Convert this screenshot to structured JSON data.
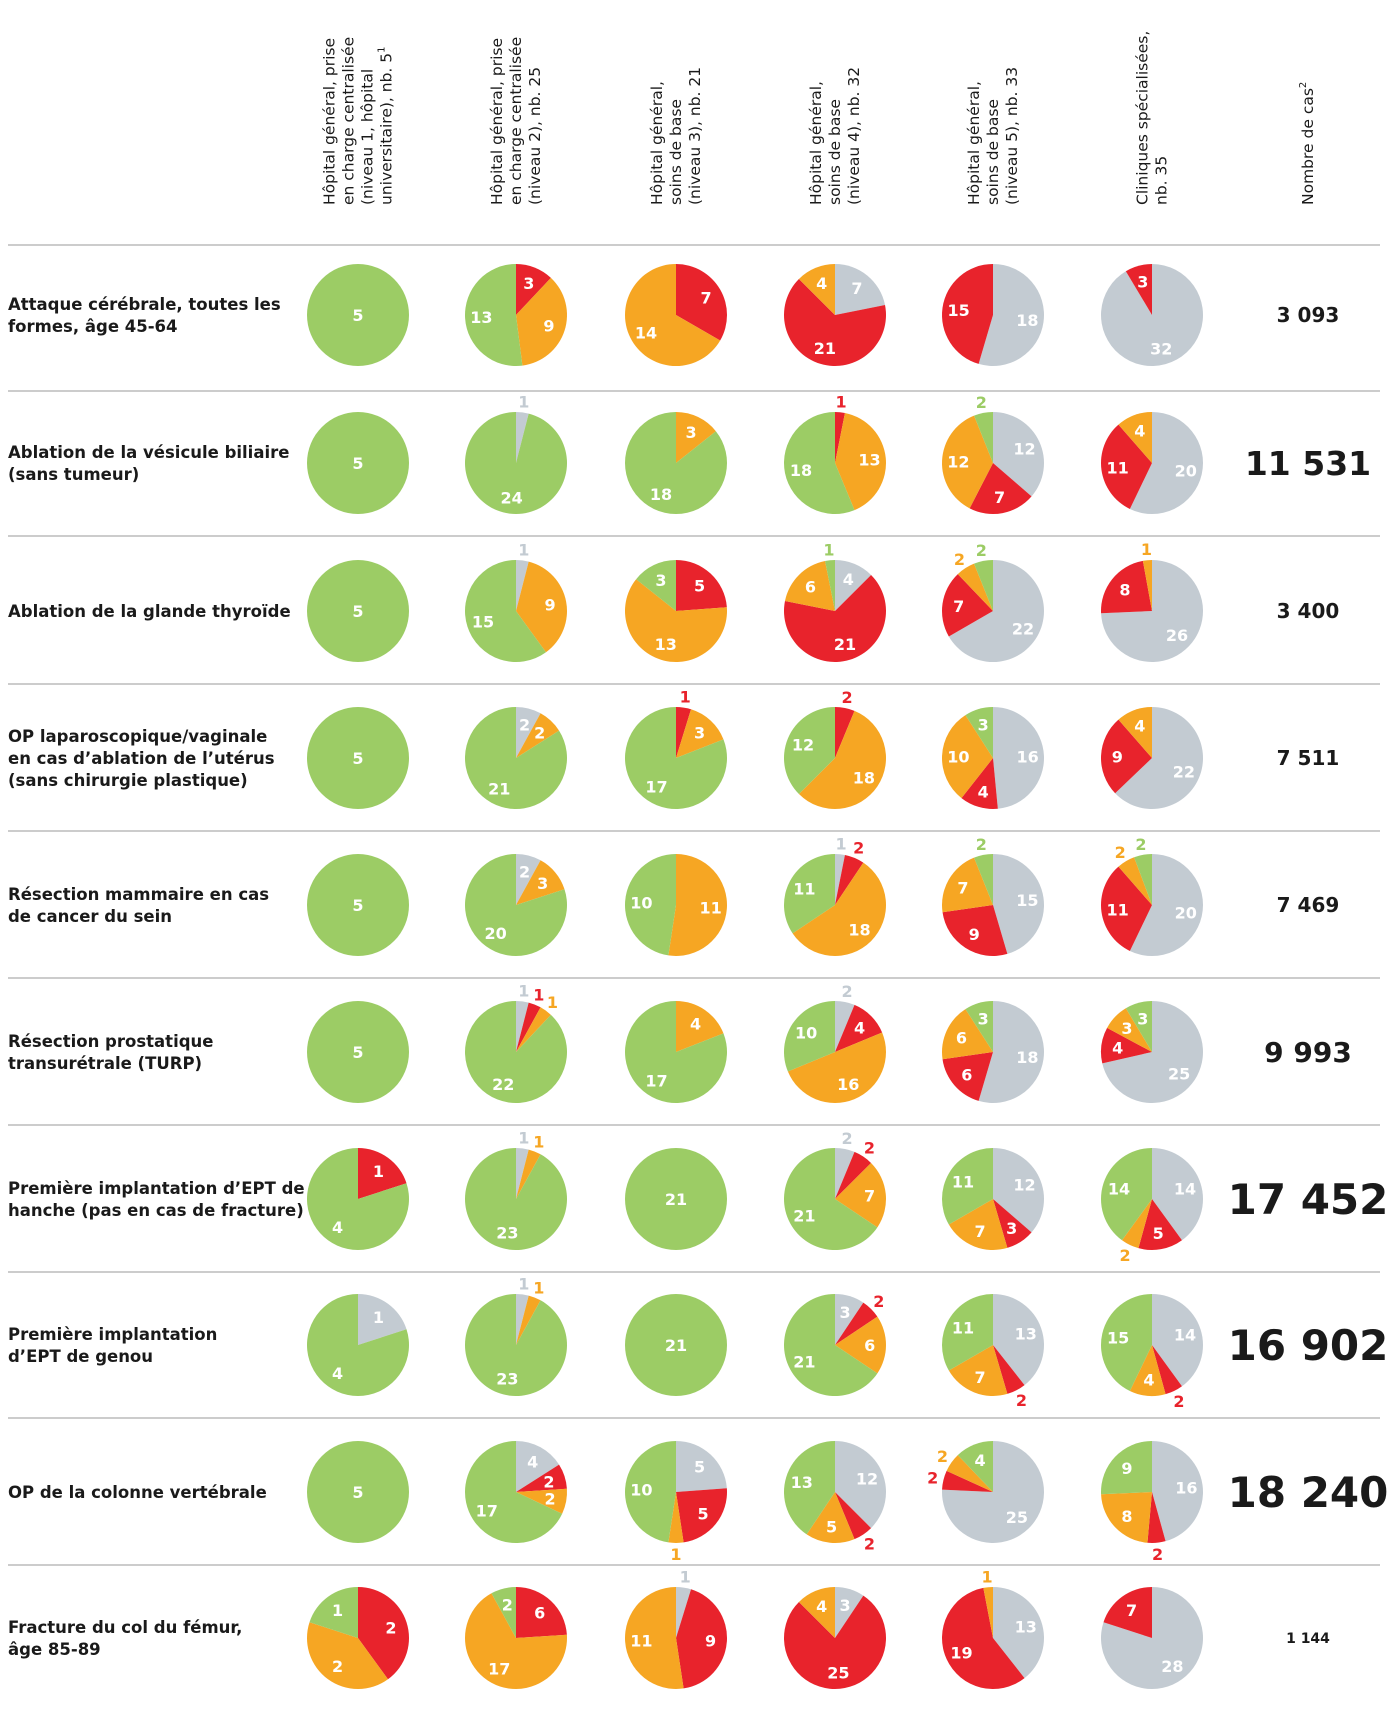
{
  "chart_data": {
    "type": "pie-grid",
    "colors": {
      "green": "#9ccc65",
      "orange": "#f6a623",
      "red": "#e8232c",
      "grey": "#c3cbd2"
    },
    "columns": [
      {
        "label_lines": [
          "Hôpital général, prise",
          "en charge centralisée",
          "(niveau 1, hôpital",
          "universitaire), nb. 5"
        ],
        "sup": "1"
      },
      {
        "label_lines": [
          "Hôpital général, prise",
          "en charge centralisée",
          "(niveau 2), nb. 25"
        ],
        "sup": ""
      },
      {
        "label_lines": [
          "Hôpital général,",
          "soins de base",
          "(niveau 3), nb. 21"
        ],
        "sup": ""
      },
      {
        "label_lines": [
          "Hôpital général,",
          "soins de base",
          "(niveau 4), nb. 32"
        ],
        "sup": ""
      },
      {
        "label_lines": [
          "Hôpital général,",
          "soins de base",
          "(niveau 5), nb. 33"
        ],
        "sup": ""
      },
      {
        "label_lines": [
          "Cliniques spécialisées,",
          "nb. 35"
        ],
        "sup": ""
      }
    ],
    "cases_header": {
      "text": "Nombre de cas",
      "sup": "2"
    },
    "rows": [
      {
        "label_lines": [
          "Attaque cérébrale, toutes les",
          "formes, âge 45-64"
        ],
        "cases": "3 093",
        "cases_size": "medium",
        "pies": [
          {
            "green": 5
          },
          {
            "green": 13,
            "orange": 9,
            "red": 3
          },
          {
            "orange": 14,
            "red": 7
          },
          {
            "orange": 4,
            "red": 21,
            "grey": 7
          },
          {
            "red": 15,
            "grey": 18
          },
          {
            "red": 3,
            "grey": 32
          }
        ]
      },
      {
        "label_lines": [
          "Ablation de la vésicule biliaire",
          "(sans tumeur)"
        ],
        "cases": "11 531",
        "cases_size": "large",
        "pies": [
          {
            "green": 5
          },
          {
            "green": 24,
            "grey": 1
          },
          {
            "green": 18,
            "orange": 3
          },
          {
            "green": 18,
            "orange": 13,
            "red": 1
          },
          {
            "green": 2,
            "orange": 12,
            "red": 7,
            "grey": 12
          },
          {
            "orange": 4,
            "red": 11,
            "grey": 20
          }
        ]
      },
      {
        "label_lines": [
          "Ablation de la glande thyroïde"
        ],
        "cases": "3 400",
        "cases_size": "medium",
        "pies": [
          {
            "green": 5
          },
          {
            "green": 15,
            "orange": 9,
            "grey": 1
          },
          {
            "green": 3,
            "orange": 13,
            "red": 5
          },
          {
            "green": 1,
            "orange": 6,
            "red": 21,
            "grey": 4
          },
          {
            "green": 2,
            "orange": 2,
            "red": 7,
            "grey": 22
          },
          {
            "orange": 1,
            "red": 8,
            "grey": 26
          }
        ]
      },
      {
        "label_lines": [
          "OP laparoscopique/vaginale",
          "en cas d’ablation de l’utérus",
          "(sans chirurgie plastique)"
        ],
        "cases": "7 511",
        "cases_size": "medium",
        "pies": [
          {
            "green": 5
          },
          {
            "green": 21,
            "orange": 2,
            "grey": 2
          },
          {
            "green": 17,
            "orange": 3,
            "red": 1
          },
          {
            "green": 12,
            "orange": 18,
            "red": 2
          },
          {
            "green": 3,
            "orange": 10,
            "red": 4,
            "grey": 16
          },
          {
            "orange": 4,
            "red": 9,
            "grey": 22
          }
        ]
      },
      {
        "label_lines": [
          "Résection mammaire en cas",
          "de cancer du sein"
        ],
        "cases": "7 469",
        "cases_size": "medium",
        "pies": [
          {
            "green": 5
          },
          {
            "green": 20,
            "orange": 3,
            "grey": 2
          },
          {
            "green": 10,
            "orange": 11
          },
          {
            "green": 11,
            "orange": 18,
            "red": 2,
            "grey": 1
          },
          {
            "green": 2,
            "orange": 7,
            "red": 9,
            "grey": 15
          },
          {
            "green": 2,
            "orange": 2,
            "red": 11,
            "grey": 20
          }
        ]
      },
      {
        "label_lines": [
          "Résection prostatique",
          "transurétrale (TURP)"
        ],
        "cases": "9 993",
        "cases_size": "medium-large",
        "pies": [
          {
            "green": 5
          },
          {
            "green": 22,
            "orange": 1,
            "red": 1,
            "grey": 1
          },
          {
            "green": 17,
            "orange": 4
          },
          {
            "green": 10,
            "orange": 16,
            "red": 4,
            "grey": 2
          },
          {
            "green": 3,
            "orange": 6,
            "red": 6,
            "grey": 18
          },
          {
            "green": 3,
            "orange": 3,
            "red": 4,
            "grey": 25
          }
        ]
      },
      {
        "label_lines": [
          "Première implantation d’EPT de",
          "hanche (pas en cas de fracture)"
        ],
        "cases": "17 452",
        "cases_size": "xlarge",
        "pies": [
          {
            "green": 4,
            "red": 1
          },
          {
            "green": 23,
            "orange": 1,
            "grey": 1
          },
          {
            "green": 21
          },
          {
            "green": 21,
            "orange": 7,
            "red": 2,
            "grey": 2
          },
          {
            "green": 11,
            "orange": 7,
            "red": 3,
            "grey": 12
          },
          {
            "green": 14,
            "orange": 2,
            "red": 5,
            "grey": 14
          }
        ]
      },
      {
        "label_lines": [
          "Première implantation",
          "d’EPT de genou"
        ],
        "cases": "16 902",
        "cases_size": "xlarge",
        "pies": [
          {
            "green": 4,
            "grey": 1
          },
          {
            "green": 23,
            "orange": 1,
            "grey": 1
          },
          {
            "green": 21
          },
          {
            "green": 21,
            "orange": 6,
            "red": 2,
            "grey": 3
          },
          {
            "green": 11,
            "orange": 7,
            "red": 2,
            "grey": 13
          },
          {
            "green": 15,
            "orange": 4,
            "red": 2,
            "grey": 14
          }
        ]
      },
      {
        "label_lines": [
          "OP de la colonne vertébrale"
        ],
        "cases": "18 240",
        "cases_size": "xlarge",
        "pies": [
          {
            "green": 5
          },
          {
            "green": 17,
            "orange": 2,
            "red": 2,
            "grey": 4
          },
          {
            "green": 10,
            "orange": 1,
            "red": 5,
            "grey": 5
          },
          {
            "green": 13,
            "orange": 5,
            "red": 2,
            "grey": 12
          },
          {
            "green": 4,
            "orange": 2,
            "red": 2,
            "grey": 25
          },
          {
            "green": 9,
            "orange": 8,
            "red": 2,
            "grey": 16
          }
        ]
      },
      {
        "label_lines": [
          "Fracture du col du fémur,",
          "âge 85-89"
        ],
        "cases": "1 144",
        "cases_size": "small",
        "pies": [
          {
            "green": 1,
            "orange": 2,
            "red": 2
          },
          {
            "green": 2,
            "orange": 17,
            "red": 6
          },
          {
            "orange": 11,
            "red": 9,
            "grey": 1
          },
          {
            "orange": 4,
            "red": 25,
            "grey": 3
          },
          {
            "orange": 1,
            "red": 19,
            "grey": 13
          },
          {
            "red": 7,
            "grey": 28
          }
        ]
      }
    ]
  }
}
